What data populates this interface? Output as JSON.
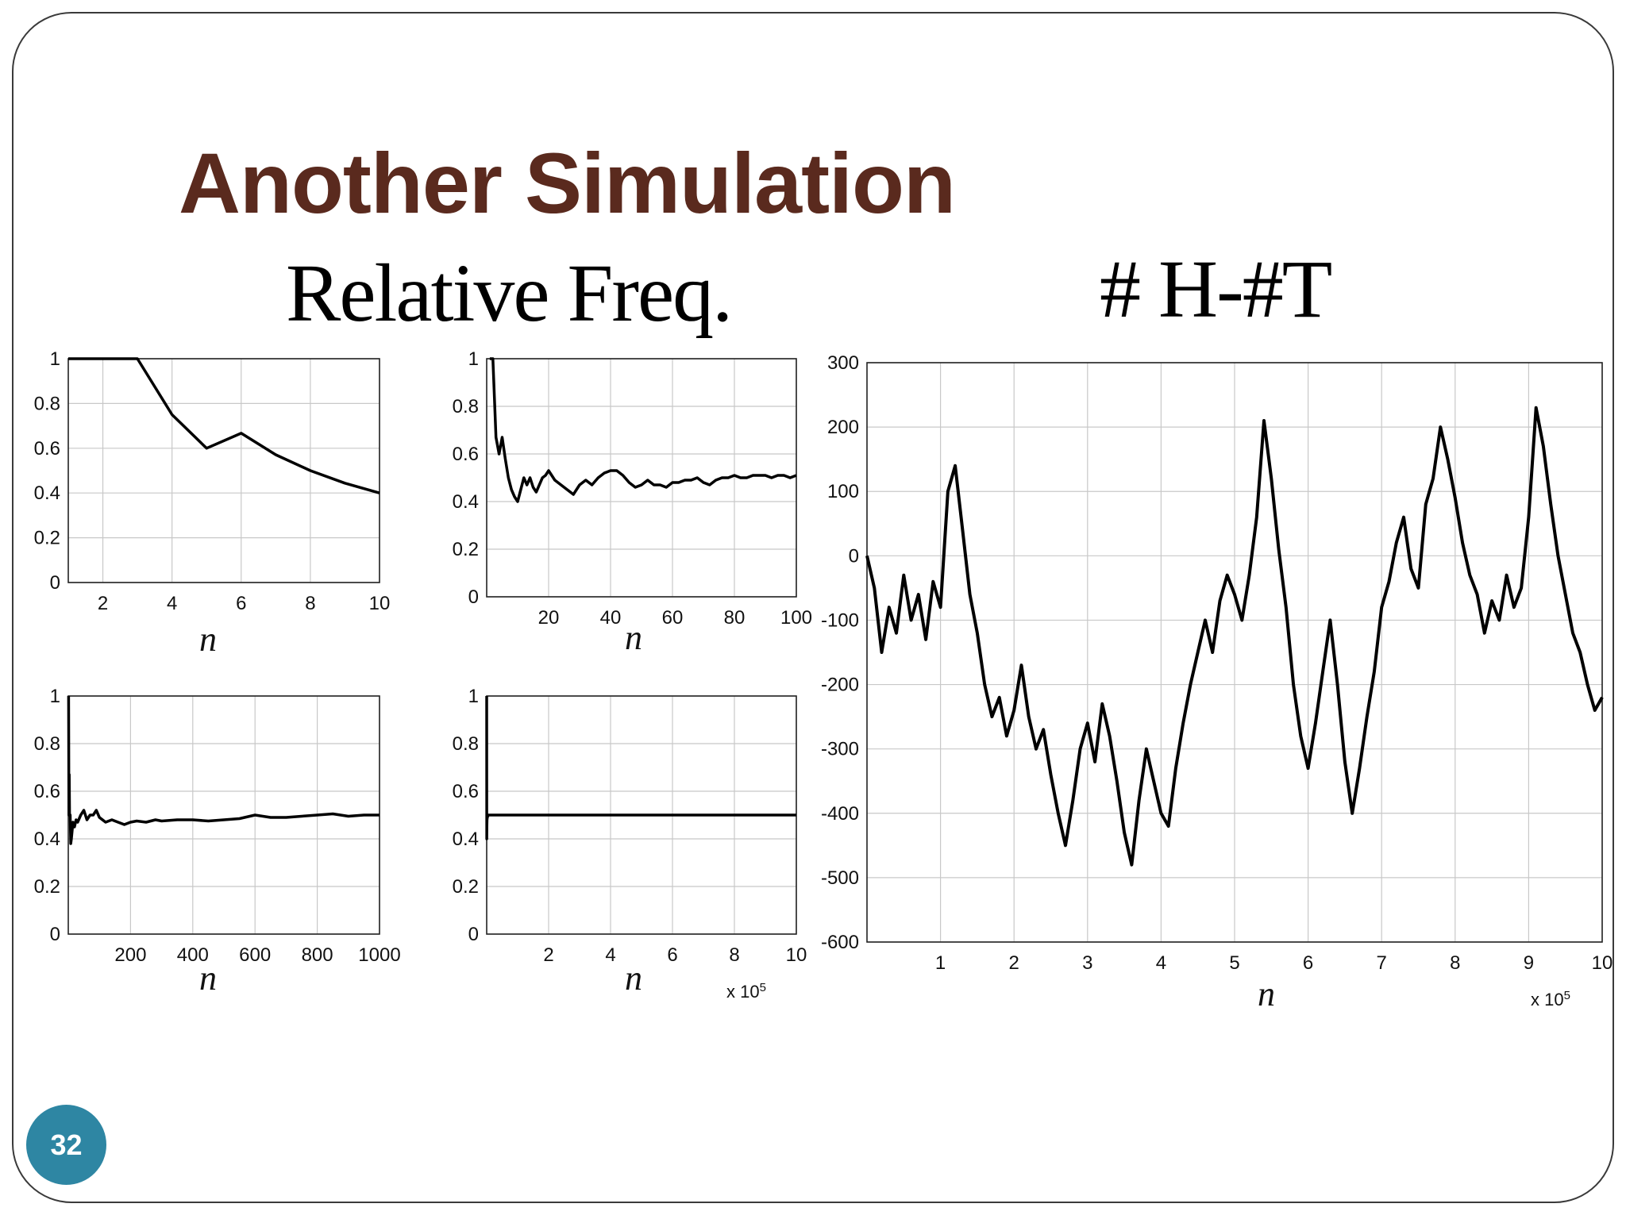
{
  "slide": {
    "title": "Another Simulation",
    "left_heading": "Relative Freq.",
    "right_heading": "# H-#T",
    "page_number": "32",
    "title_color": "#5a2a1e",
    "badge_color": "#2e86a3"
  },
  "chart_data": [
    {
      "type": "line",
      "x": [
        1,
        2,
        3,
        4,
        5,
        6,
        7,
        8,
        9,
        10
      ],
      "y": [
        1,
        1,
        1,
        0.75,
        0.6,
        0.667,
        0.571,
        0.5,
        0.444,
        0.4
      ],
      "xticks": [
        2,
        4,
        6,
        8,
        10
      ],
      "yticks": [
        0,
        0.2,
        0.4,
        0.6,
        0.8,
        1
      ],
      "xlim": [
        1,
        10
      ],
      "ylim": [
        0,
        1
      ],
      "xlabel": "n",
      "grid": true
    },
    {
      "type": "line",
      "x": [
        1,
        2,
        3,
        4,
        5,
        6,
        7,
        8,
        9,
        10,
        11,
        12,
        13,
        14,
        15,
        16,
        17,
        18,
        19,
        20,
        22,
        24,
        26,
        28,
        30,
        32,
        34,
        36,
        38,
        40,
        42,
        44,
        46,
        48,
        50,
        52,
        54,
        56,
        58,
        60,
        62,
        64,
        66,
        68,
        70,
        72,
        74,
        76,
        78,
        80,
        82,
        84,
        86,
        88,
        90,
        92,
        94,
        96,
        98,
        100
      ],
      "y": [
        1,
        1,
        0.67,
        0.6,
        0.67,
        0.58,
        0.5,
        0.45,
        0.42,
        0.4,
        0.45,
        0.5,
        0.47,
        0.5,
        0.46,
        0.44,
        0.47,
        0.5,
        0.51,
        0.53,
        0.49,
        0.47,
        0.45,
        0.43,
        0.47,
        0.49,
        0.47,
        0.5,
        0.52,
        0.53,
        0.53,
        0.51,
        0.48,
        0.46,
        0.47,
        0.49,
        0.47,
        0.47,
        0.46,
        0.48,
        0.48,
        0.49,
        0.49,
        0.5,
        0.48,
        0.47,
        0.49,
        0.5,
        0.5,
        0.51,
        0.5,
        0.5,
        0.51,
        0.51,
        0.51,
        0.5,
        0.51,
        0.51,
        0.5,
        0.51
      ],
      "xticks": [
        20,
        40,
        60,
        80,
        100
      ],
      "yticks": [
        0,
        0.2,
        0.4,
        0.6,
        0.8,
        1
      ],
      "xlim": [
        0,
        100
      ],
      "ylim": [
        0,
        1
      ],
      "xlabel": "n",
      "grid": true
    },
    {
      "type": "line",
      "x": [
        1,
        2,
        3,
        4,
        6,
        8,
        10,
        15,
        20,
        25,
        30,
        40,
        50,
        60,
        70,
        80,
        90,
        100,
        120,
        140,
        160,
        180,
        200,
        220,
        250,
        280,
        300,
        350,
        400,
        450,
        500,
        550,
        600,
        650,
        700,
        750,
        800,
        850,
        900,
        950,
        1000
      ],
      "y": [
        1,
        0.5,
        0.67,
        0.5,
        0.5,
        0.38,
        0.4,
        0.47,
        0.45,
        0.48,
        0.47,
        0.5,
        0.52,
        0.48,
        0.5,
        0.5,
        0.52,
        0.49,
        0.47,
        0.48,
        0.47,
        0.46,
        0.47,
        0.475,
        0.47,
        0.48,
        0.475,
        0.48,
        0.48,
        0.475,
        0.48,
        0.485,
        0.5,
        0.49,
        0.49,
        0.495,
        0.5,
        0.505,
        0.495,
        0.5,
        0.5
      ],
      "xticks": [
        200,
        400,
        600,
        800,
        1000
      ],
      "yticks": [
        0,
        0.2,
        0.4,
        0.6,
        0.8,
        1
      ],
      "xlim": [
        0,
        1000
      ],
      "ylim": [
        0,
        1
      ],
      "xlabel": "n",
      "grid": true
    },
    {
      "type": "line",
      "x": [
        0,
        0.002,
        0.005,
        0.01,
        0.02,
        0.05,
        0.1,
        0.3,
        0.5,
        1,
        2,
        3,
        4,
        5,
        6,
        7,
        8,
        9,
        10
      ],
      "y": [
        1,
        0.4,
        0.45,
        0.48,
        0.49,
        0.5,
        0.5,
        0.5,
        0.5,
        0.5,
        0.5,
        0.5,
        0.5,
        0.5,
        0.5,
        0.5,
        0.5,
        0.5,
        0.5
      ],
      "xticks": [
        2,
        4,
        6,
        8,
        10
      ],
      "yticks": [
        0,
        0.2,
        0.4,
        0.6,
        0.8,
        1
      ],
      "xlim": [
        0,
        10
      ],
      "ylim": [
        0,
        1
      ],
      "xlabel": "n",
      "x_multiplier": "x 10^5",
      "grid": true
    },
    {
      "type": "line",
      "x": [
        0,
        0.1,
        0.2,
        0.3,
        0.4,
        0.5,
        0.6,
        0.7,
        0.8,
        0.9,
        1.0,
        1.1,
        1.2,
        1.3,
        1.4,
        1.5,
        1.6,
        1.7,
        1.8,
        1.9,
        2.0,
        2.1,
        2.2,
        2.3,
        2.4,
        2.5,
        2.6,
        2.7,
        2.8,
        2.9,
        3.0,
        3.1,
        3.2,
        3.3,
        3.4,
        3.5,
        3.6,
        3.7,
        3.8,
        3.9,
        4.0,
        4.1,
        4.2,
        4.3,
        4.4,
        4.5,
        4.6,
        4.7,
        4.8,
        4.9,
        5.0,
        5.1,
        5.2,
        5.3,
        5.4,
        5.5,
        5.6,
        5.7,
        5.8,
        5.9,
        6.0,
        6.1,
        6.2,
        6.3,
        6.4,
        6.5,
        6.6,
        6.7,
        6.8,
        6.9,
        7.0,
        7.1,
        7.2,
        7.3,
        7.4,
        7.5,
        7.6,
        7.7,
        7.8,
        7.9,
        8.0,
        8.1,
        8.2,
        8.3,
        8.4,
        8.5,
        8.6,
        8.7,
        8.8,
        8.9,
        9.0,
        9.1,
        9.2,
        9.3,
        9.4,
        9.5,
        9.6,
        9.7,
        9.8,
        9.9,
        10.0
      ],
      "y": [
        0,
        -50,
        -150,
        -80,
        -120,
        -30,
        -100,
        -60,
        -130,
        -40,
        -80,
        100,
        140,
        40,
        -60,
        -120,
        -200,
        -250,
        -220,
        -280,
        -240,
        -170,
        -250,
        -300,
        -270,
        -340,
        -400,
        -450,
        -380,
        -300,
        -260,
        -320,
        -230,
        -280,
        -350,
        -430,
        -480,
        -380,
        -300,
        -350,
        -400,
        -420,
        -330,
        -260,
        -200,
        -150,
        -100,
        -150,
        -70,
        -30,
        -60,
        -100,
        -30,
        60,
        210,
        120,
        10,
        -80,
        -200,
        -280,
        -330,
        -260,
        -180,
        -100,
        -200,
        -320,
        -400,
        -330,
        -250,
        -180,
        -80,
        -40,
        20,
        60,
        -20,
        -50,
        80,
        120,
        200,
        150,
        90,
        20,
        -30,
        -60,
        -120,
        -70,
        -100,
        -30,
        -80,
        -50,
        60,
        230,
        170,
        80,
        0,
        -60,
        -120,
        -150,
        -200,
        -240,
        -220
      ],
      "xticks": [
        1,
        2,
        3,
        4,
        5,
        6,
        7,
        8,
        9,
        10
      ],
      "yticks": [
        -600,
        -500,
        -400,
        -300,
        -200,
        -100,
        0,
        100,
        200,
        300
      ],
      "xlim": [
        0,
        10
      ],
      "ylim": [
        -600,
        300
      ],
      "xlabel": "n",
      "x_multiplier": "x 10^5",
      "grid": true
    }
  ]
}
